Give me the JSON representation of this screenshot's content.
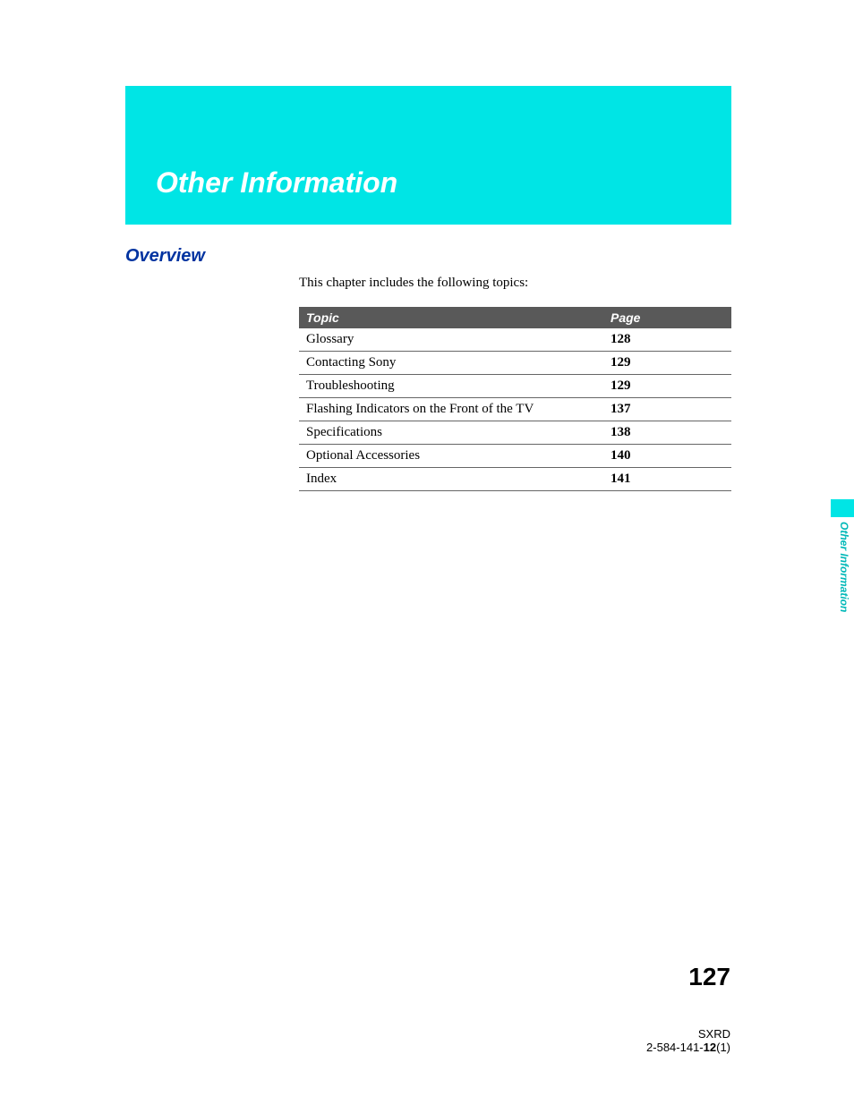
{
  "header": {
    "title": "Other Information",
    "banner_bg": "#00e5e5",
    "title_color": "#ffffff",
    "title_fontsize": 32
  },
  "overview": {
    "label": "Overview",
    "label_color": "#0033a0",
    "intro": "This chapter includes the following topics:"
  },
  "table": {
    "header_bg": "#595959",
    "header_color": "#ffffff",
    "columns": [
      "Topic",
      "Page"
    ],
    "rows": [
      {
        "topic": "Glossary",
        "page": "128"
      },
      {
        "topic": "Contacting Sony",
        "page": "129"
      },
      {
        "topic": "Troubleshooting",
        "page": "129"
      },
      {
        "topic": "Flashing Indicators on the Front of the TV",
        "page": "137"
      },
      {
        "topic": "Specifications",
        "page": "138"
      },
      {
        "topic": "Optional Accessories",
        "page": "140"
      },
      {
        "topic": "Index",
        "page": "141"
      }
    ]
  },
  "side": {
    "label": "Other Information",
    "tab_color": "#00e5e5",
    "text_color": "#00b8b8"
  },
  "footer": {
    "page_number": "127",
    "code_line1": "SXRD",
    "code_prefix": "2-584-141-",
    "code_bold": "12",
    "code_suffix": "(1)"
  }
}
